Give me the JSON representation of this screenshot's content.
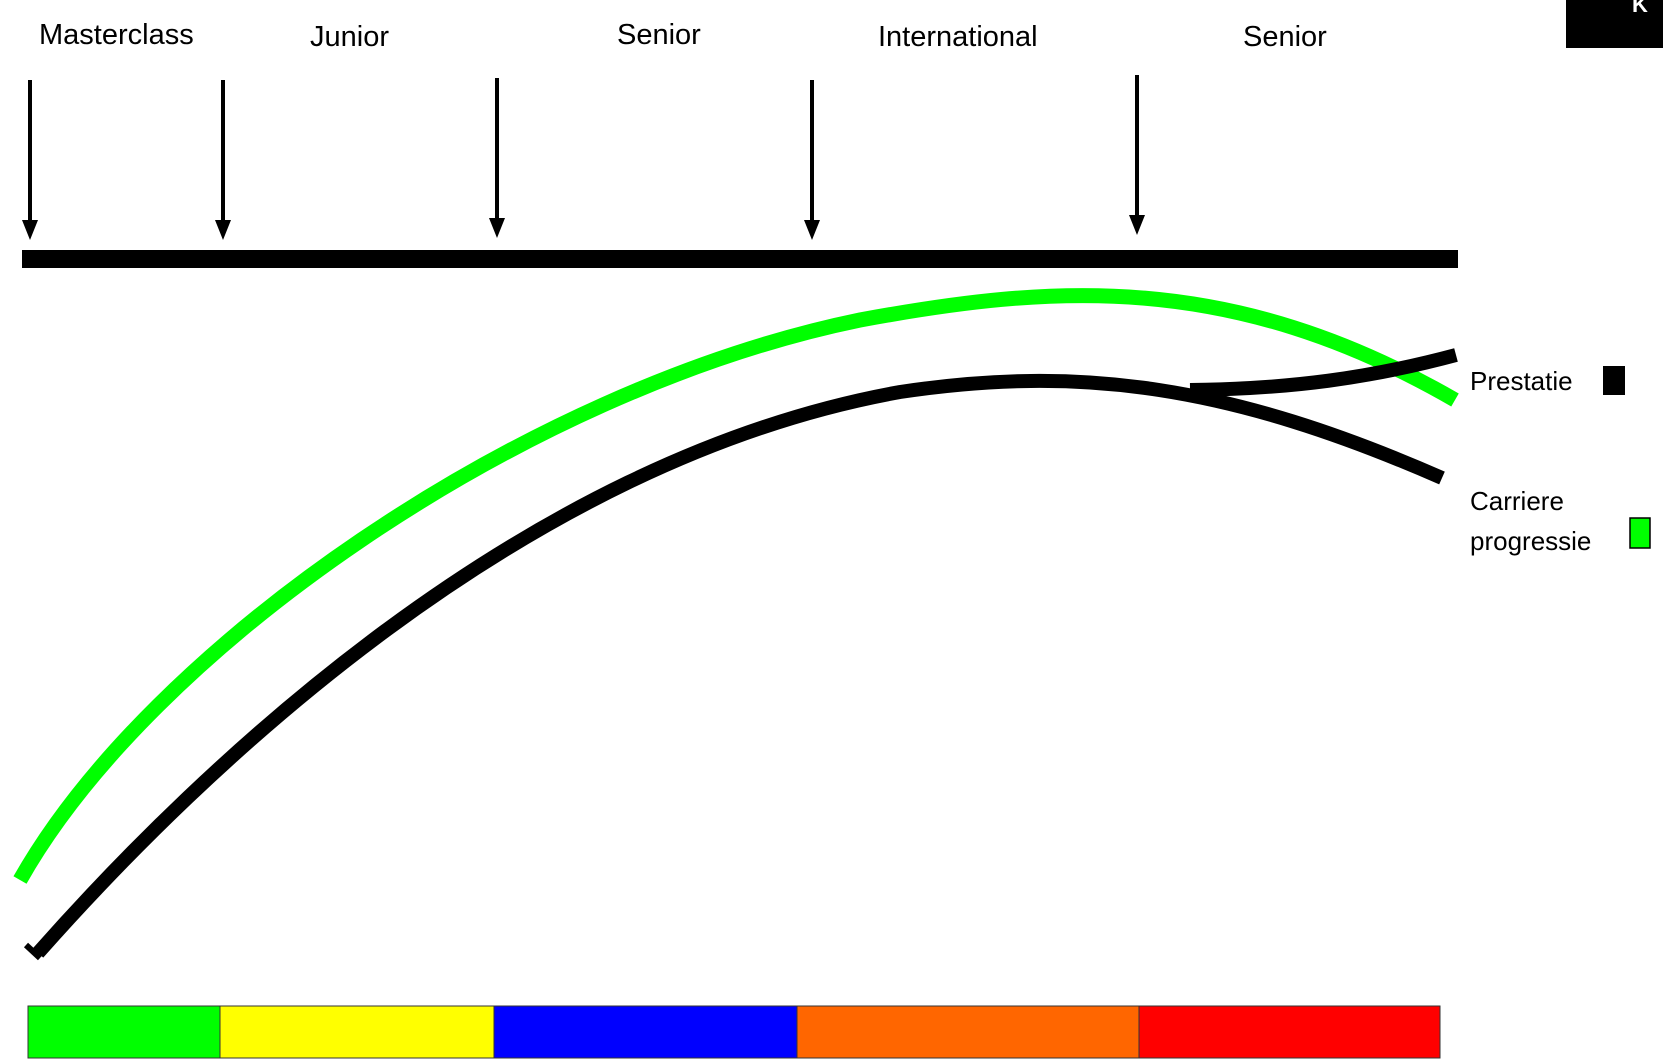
{
  "stages": [
    {
      "label": "Masterclass"
    },
    {
      "label": "Junior"
    },
    {
      "label": "Senior"
    },
    {
      "label": "International"
    },
    {
      "label": "Senior"
    }
  ],
  "corner_label": "K",
  "legend": {
    "prestatie": {
      "label": "Prestatie",
      "color": "#000000"
    },
    "carriere": {
      "label_line1": "Carriere",
      "label_line2": "progressie",
      "color": "#00ff00"
    }
  },
  "phase_bar": {
    "colors": [
      "#00ff00",
      "#ffff00",
      "#0000ff",
      "#ff6600",
      "#ff0000"
    ]
  },
  "colors": {
    "timeline": "#000000",
    "curve_green": "#00ff00",
    "curve_black": "#000000"
  }
}
